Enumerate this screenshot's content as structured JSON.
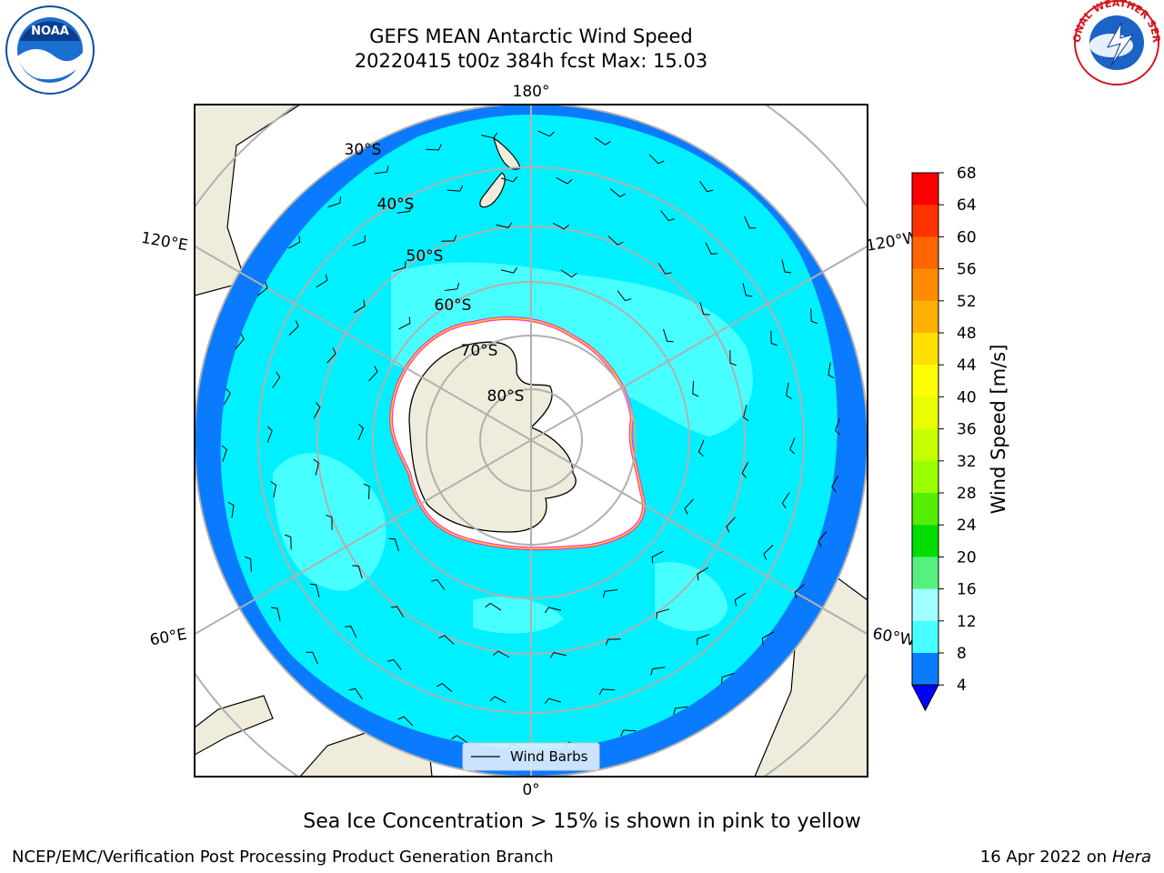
{
  "header": {
    "title_line1": "GEFS MEAN Antarctic Wind Speed",
    "title_line2": "20220415 t00z 384h fcst   Max: 15.03"
  },
  "logos": {
    "left": {
      "icon": "noaa-logo",
      "text": "NOAA"
    },
    "right": {
      "icon": "nws-logo",
      "text": "NATIONAL WEATHER SERVICE"
    }
  },
  "map": {
    "projection": "south-polar-stereographic",
    "longitude_labels": [
      "180°",
      "120°E",
      "120°W",
      "60°E",
      "60°W",
      "0°"
    ],
    "latitude_labels": [
      "30°S",
      "40°S",
      "50°S",
      "60°S",
      "70°S",
      "80°S"
    ],
    "legend_label": "Wind Barbs",
    "colors": {
      "land": "#efecdc",
      "ocean_4_8": "#0a7bff",
      "ocean_8_12": "#00f0ff",
      "ocean_12_16": "#48ffff",
      "sea_ice_edge": "#ff33cc",
      "sea_ice_inner": "#ffd700",
      "ice_shelf": "#ffffff",
      "grid": "#b0b0b0"
    }
  },
  "colorbar": {
    "label": "Wind Speed [m/s]",
    "ticks": [
      "68",
      "64",
      "60",
      "56",
      "52",
      "48",
      "44",
      "40",
      "36",
      "32",
      "28",
      "24",
      "20",
      "16",
      "12",
      "8",
      "4"
    ],
    "colors": [
      "#ff0000",
      "#ff3300",
      "#ff6600",
      "#ff8c00",
      "#ffb000",
      "#ffe000",
      "#ffff00",
      "#e8ff00",
      "#c8ff00",
      "#99ff00",
      "#55ee00",
      "#00dd00",
      "#55f080",
      "#a0ffff",
      "#48ffff",
      "#00f0ff",
      "#0a7bff"
    ],
    "extend_color": "#0000ff"
  },
  "footer": {
    "note": "Sea Ice Concentration > 15% is shown in pink to yellow",
    "credit_left": "NCEP/EMC/Verification Post Processing Product Generation Branch",
    "date": "16 Apr 2022 on ",
    "host": "Hera"
  }
}
